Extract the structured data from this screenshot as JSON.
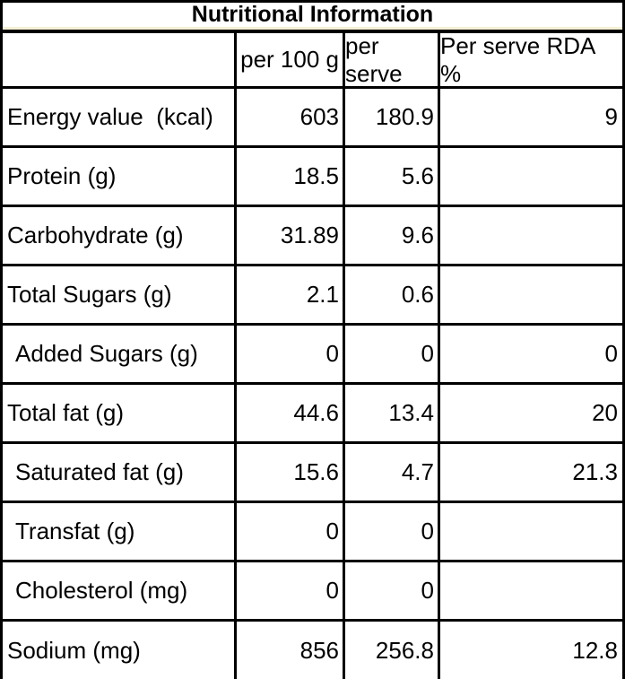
{
  "table": {
    "title": "Nutritional Information",
    "columns": {
      "label": "",
      "per_100g": "per 100 g",
      "per_serve": "per serve",
      "rda": "Per serve RDA %"
    },
    "colors": {
      "border": "#000000",
      "accent_line": "#f5efd5",
      "background": "#ffffff",
      "text": "#000000"
    },
    "rows": [
      {
        "label": "Energy value  (kcal)",
        "per_100g": "603",
        "per_serve": "180.9",
        "rda": "9"
      },
      {
        "label": "Protein (g)",
        "per_100g": "18.5",
        "per_serve": "5.6",
        "rda": ""
      },
      {
        "label": "Carbohydrate (g)",
        "per_100g": "31.89",
        "per_serve": "9.6",
        "rda": ""
      },
      {
        "label": "Total Sugars (g)",
        "per_100g": "2.1",
        "per_serve": "0.6",
        "rda": ""
      },
      {
        "label": "Added Sugars (g)",
        "per_100g": "0",
        "per_serve": "0",
        "rda": "0"
      },
      {
        "label": "Total fat (g)",
        "per_100g": "44.6",
        "per_serve": "13.4",
        "rda": "20"
      },
      {
        "label": "Saturated fat (g)",
        "per_100g": "15.6",
        "per_serve": "4.7",
        "rda": "21.3"
      },
      {
        "label": "Transfat (g)",
        "per_100g": "0",
        "per_serve": "0",
        "rda": ""
      },
      {
        "label": "Cholesterol (mg)",
        "per_100g": "0",
        "per_serve": "0",
        "rda": ""
      },
      {
        "label": "Sodium (mg)",
        "per_100g": "856",
        "per_serve": "256.8",
        "rda": "12.8"
      }
    ]
  }
}
